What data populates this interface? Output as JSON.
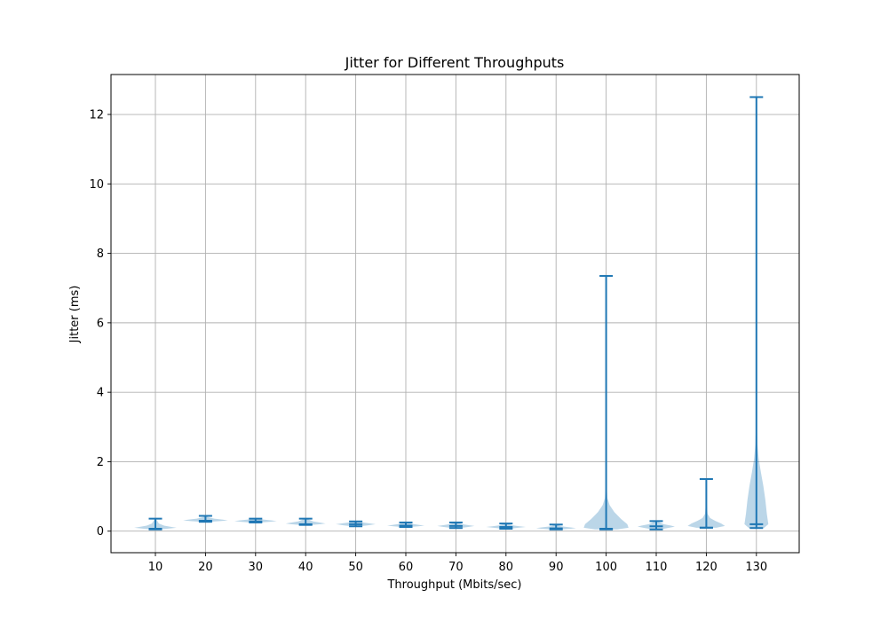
{
  "chart_data": {
    "type": "violin",
    "title": "Jitter for Different Throughputs",
    "xlabel": "Throughput (Mbits/sec)",
    "ylabel": "Jitter (ms)",
    "categories": [
      "10",
      "20",
      "30",
      "40",
      "50",
      "60",
      "70",
      "80",
      "90",
      "100",
      "110",
      "120",
      "130"
    ],
    "ylim": [
      -0.62,
      13.15
    ],
    "yticks": [
      "0",
      "2",
      "4",
      "6",
      "8",
      "10",
      "12"
    ],
    "grid": true,
    "colors": {
      "stat_line": "#1f77b4",
      "body_fill": "#1f77b4",
      "grid": "#b0b0b0"
    },
    "violins": [
      {
        "category": "10",
        "min": 0.05,
        "max": 0.36,
        "median": 0.07,
        "profile": [
          [
            0.05,
            0.2
          ],
          [
            0.08,
            0.6
          ],
          [
            0.1,
            0.85
          ],
          [
            0.12,
            0.65
          ],
          [
            0.16,
            0.35
          ],
          [
            0.22,
            0.14
          ],
          [
            0.36,
            0.02
          ]
        ]
      },
      {
        "category": "20",
        "min": 0.27,
        "max": 0.44,
        "median": 0.3,
        "profile": [
          [
            0.27,
            0.2
          ],
          [
            0.29,
            0.6
          ],
          [
            0.31,
            0.9
          ],
          [
            0.33,
            0.7
          ],
          [
            0.36,
            0.35
          ],
          [
            0.4,
            0.12
          ],
          [
            0.44,
            0.02
          ]
        ]
      },
      {
        "category": "30",
        "min": 0.25,
        "max": 0.36,
        "median": 0.28,
        "profile": [
          [
            0.25,
            0.2
          ],
          [
            0.27,
            0.6
          ],
          [
            0.29,
            0.85
          ],
          [
            0.31,
            0.65
          ],
          [
            0.33,
            0.35
          ],
          [
            0.36,
            0.05
          ]
        ]
      },
      {
        "category": "40",
        "min": 0.18,
        "max": 0.36,
        "median": 0.2,
        "profile": [
          [
            0.18,
            0.2
          ],
          [
            0.2,
            0.6
          ],
          [
            0.22,
            0.8
          ],
          [
            0.24,
            0.65
          ],
          [
            0.28,
            0.3
          ],
          [
            0.36,
            0.03
          ]
        ]
      },
      {
        "category": "50",
        "min": 0.14,
        "max": 0.28,
        "median": 0.2,
        "profile": [
          [
            0.14,
            0.15
          ],
          [
            0.17,
            0.5
          ],
          [
            0.2,
            0.8
          ],
          [
            0.22,
            0.6
          ],
          [
            0.25,
            0.3
          ],
          [
            0.28,
            0.04
          ]
        ]
      },
      {
        "category": "60",
        "min": 0.12,
        "max": 0.25,
        "median": 0.16,
        "profile": [
          [
            0.12,
            0.15
          ],
          [
            0.14,
            0.5
          ],
          [
            0.16,
            0.75
          ],
          [
            0.18,
            0.55
          ],
          [
            0.21,
            0.25
          ],
          [
            0.25,
            0.03
          ]
        ]
      },
      {
        "category": "70",
        "min": 0.09,
        "max": 0.25,
        "median": 0.15,
        "profile": [
          [
            0.09,
            0.15
          ],
          [
            0.12,
            0.5
          ],
          [
            0.15,
            0.75
          ],
          [
            0.17,
            0.55
          ],
          [
            0.2,
            0.25
          ],
          [
            0.25,
            0.03
          ]
        ]
      },
      {
        "category": "80",
        "min": 0.07,
        "max": 0.22,
        "median": 0.12,
        "profile": [
          [
            0.07,
            0.15
          ],
          [
            0.1,
            0.5
          ],
          [
            0.12,
            0.8
          ],
          [
            0.14,
            0.55
          ],
          [
            0.17,
            0.25
          ],
          [
            0.22,
            0.03
          ]
        ]
      },
      {
        "category": "90",
        "min": 0.05,
        "max": 0.19,
        "median": 0.08,
        "profile": [
          [
            0.05,
            0.2
          ],
          [
            0.07,
            0.6
          ],
          [
            0.09,
            0.8
          ],
          [
            0.11,
            0.55
          ],
          [
            0.14,
            0.2
          ],
          [
            0.19,
            0.02
          ]
        ]
      },
      {
        "category": "100",
        "min": 0.05,
        "max": 7.35,
        "median": 0.07,
        "profile": [
          [
            0.05,
            0.45
          ],
          [
            0.1,
            0.9
          ],
          [
            0.2,
            0.85
          ],
          [
            0.35,
            0.6
          ],
          [
            0.55,
            0.33
          ],
          [
            0.75,
            0.14
          ],
          [
            0.95,
            0.05
          ],
          [
            1.3,
            0.02
          ],
          [
            2,
            0.008
          ],
          [
            3.5,
            0.004
          ],
          [
            7.35,
            0.002
          ]
        ]
      },
      {
        "category": "110",
        "min": 0.05,
        "max": 0.29,
        "median": 0.14,
        "profile": [
          [
            0.05,
            0.15
          ],
          [
            0.09,
            0.45
          ],
          [
            0.13,
            0.75
          ],
          [
            0.16,
            0.6
          ],
          [
            0.2,
            0.3
          ],
          [
            0.29,
            0.03
          ]
        ]
      },
      {
        "category": "120",
        "min": 0.1,
        "max": 1.5,
        "median": 0.1,
        "profile": [
          [
            0.1,
            0.4
          ],
          [
            0.15,
            0.75
          ],
          [
            0.22,
            0.6
          ],
          [
            0.3,
            0.35
          ],
          [
            0.38,
            0.15
          ],
          [
            0.5,
            0.05
          ],
          [
            0.8,
            0.02
          ],
          [
            1.5,
            0.005
          ]
        ]
      },
      {
        "category": "130",
        "min": 0.09,
        "max": 12.5,
        "median": 0.2,
        "profile": [
          [
            0.09,
            0.3
          ],
          [
            0.2,
            0.48
          ],
          [
            0.5,
            0.42
          ],
          [
            0.9,
            0.36
          ],
          [
            1.3,
            0.28
          ],
          [
            1.7,
            0.18
          ],
          [
            2.1,
            0.09
          ],
          [
            2.5,
            0.04
          ],
          [
            3,
            0.02
          ],
          [
            5,
            0.008
          ],
          [
            8,
            0.004
          ],
          [
            12.5,
            0.002
          ]
        ]
      }
    ]
  }
}
